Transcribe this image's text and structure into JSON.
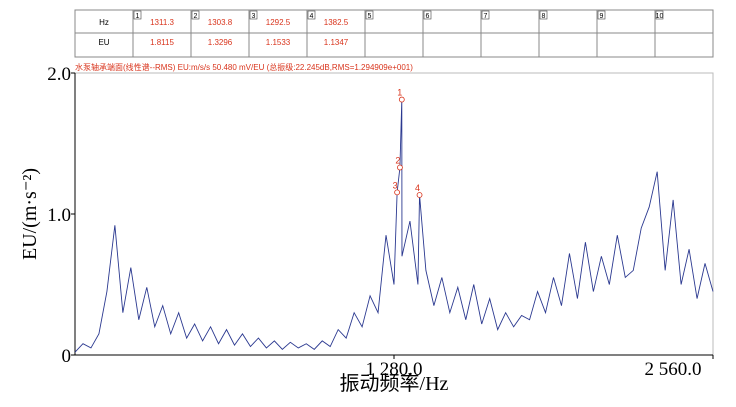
{
  "chart_data": {
    "type": "line",
    "header": "水泵轴承端面(线性谱--RMS)  EU:m/s/s    50.480 mV/EU (总振级:22.245dB,RMS=1.294909e+001)",
    "table_row_labels": [
      "Hz",
      "EU"
    ],
    "cursors": [
      {
        "n": "1",
        "hz": 1311.3,
        "eu": 1.8115
      },
      {
        "n": "2",
        "hz": 1303.8,
        "eu": 1.3296
      },
      {
        "n": "3",
        "hz": 1292.5,
        "eu": 1.1533
      },
      {
        "n": "4",
        "hz": 1382.5,
        "eu": 1.1347
      },
      {
        "n": "5",
        "hz": null,
        "eu": null
      },
      {
        "n": "6",
        "hz": null,
        "eu": null
      },
      {
        "n": "7",
        "hz": null,
        "eu": null
      },
      {
        "n": "8",
        "hz": null,
        "eu": null
      },
      {
        "n": "9",
        "hz": null,
        "eu": null
      },
      {
        "n": "10",
        "hz": null,
        "eu": null
      }
    ],
    "xlabel": "振动频率/Hz",
    "ylabel": "EU/(m·s⁻²)",
    "xlim": [
      0,
      2560
    ],
    "ylim": [
      0,
      2
    ],
    "xticks": [
      {
        "value": 1280,
        "label": "1 280.0"
      },
      {
        "value": 2560,
        "label": "2 560.0"
      }
    ],
    "yticks": [
      0,
      {
        "value": 1,
        "label": "1.0"
      },
      {
        "value": 2,
        "label": "2.0"
      }
    ],
    "x": [
      0,
      32,
      64,
      96,
      128,
      160,
      192,
      224,
      256,
      288,
      320,
      352,
      384,
      416,
      448,
      480,
      512,
      544,
      576,
      608,
      640,
      672,
      704,
      736,
      768,
      800,
      832,
      864,
      896,
      928,
      960,
      992,
      1024,
      1056,
      1088,
      1120,
      1152,
      1184,
      1216,
      1248,
      1280,
      1292.5,
      1303.8,
      1311.3,
      1312,
      1344,
      1376,
      1382.5,
      1408,
      1440,
      1472,
      1504,
      1536,
      1568,
      1600,
      1632,
      1664,
      1696,
      1728,
      1760,
      1792,
      1824,
      1856,
      1888,
      1920,
      1952,
      1984,
      2016,
      2048,
      2080,
      2112,
      2144,
      2176,
      2208,
      2240,
      2272,
      2304,
      2336,
      2368,
      2400,
      2432,
      2464,
      2496,
      2528,
      2560
    ],
    "series": [
      {
        "color": "#2b3990",
        "values": [
          0.02,
          0.08,
          0.05,
          0.15,
          0.45,
          0.92,
          0.3,
          0.62,
          0.25,
          0.48,
          0.2,
          0.35,
          0.15,
          0.3,
          0.12,
          0.22,
          0.1,
          0.2,
          0.08,
          0.18,
          0.07,
          0.15,
          0.06,
          0.12,
          0.05,
          0.1,
          0.04,
          0.09,
          0.05,
          0.08,
          0.04,
          0.1,
          0.06,
          0.18,
          0.12,
          0.3,
          0.2,
          0.42,
          0.3,
          0.85,
          0.5,
          1.1533,
          1.3296,
          1.8115,
          0.7,
          0.95,
          0.5,
          1.1347,
          0.6,
          0.35,
          0.55,
          0.3,
          0.48,
          0.25,
          0.5,
          0.22,
          0.4,
          0.18,
          0.3,
          0.2,
          0.28,
          0.25,
          0.45,
          0.3,
          0.55,
          0.35,
          0.72,
          0.4,
          0.8,
          0.45,
          0.7,
          0.5,
          0.85,
          0.55,
          0.6,
          0.9,
          1.05,
          1.3,
          0.6,
          1.1,
          0.5,
          0.75,
          0.4,
          0.65,
          0.45
        ]
      }
    ]
  }
}
